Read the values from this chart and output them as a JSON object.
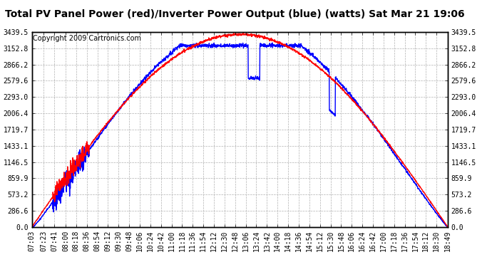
{
  "title": "Total PV Panel Power (red)/Inverter Power Output (blue) (watts) Sat Mar 21 19:06",
  "copyright": "Copyright 2009 Cartronics.com",
  "bg_color": "#ffffff",
  "plot_bg_color": "#ffffff",
  "grid_color": "#b0b0b0",
  "red_color": "#ff0000",
  "blue_color": "#0000ff",
  "ymax": 3439.5,
  "ymin": 0.0,
  "ytick_values": [
    0.0,
    286.6,
    573.2,
    859.9,
    1146.5,
    1433.1,
    1719.7,
    2006.4,
    2293.0,
    2579.6,
    2866.2,
    3152.8,
    3439.5
  ],
  "x_labels": [
    "07:03",
    "07:23",
    "07:41",
    "08:00",
    "08:18",
    "08:36",
    "08:54",
    "09:12",
    "09:30",
    "09:48",
    "10:06",
    "10:24",
    "10:42",
    "11:00",
    "11:18",
    "11:36",
    "11:54",
    "12:12",
    "12:30",
    "12:48",
    "13:06",
    "13:24",
    "13:42",
    "14:00",
    "14:18",
    "14:36",
    "14:54",
    "15:12",
    "15:30",
    "15:48",
    "16:06",
    "16:24",
    "16:42",
    "17:00",
    "17:18",
    "17:36",
    "17:54",
    "18:12",
    "18:30",
    "18:49"
  ],
  "title_fontsize": 10,
  "copyright_fontsize": 7,
  "tick_fontsize": 7,
  "line_width": 1.0
}
